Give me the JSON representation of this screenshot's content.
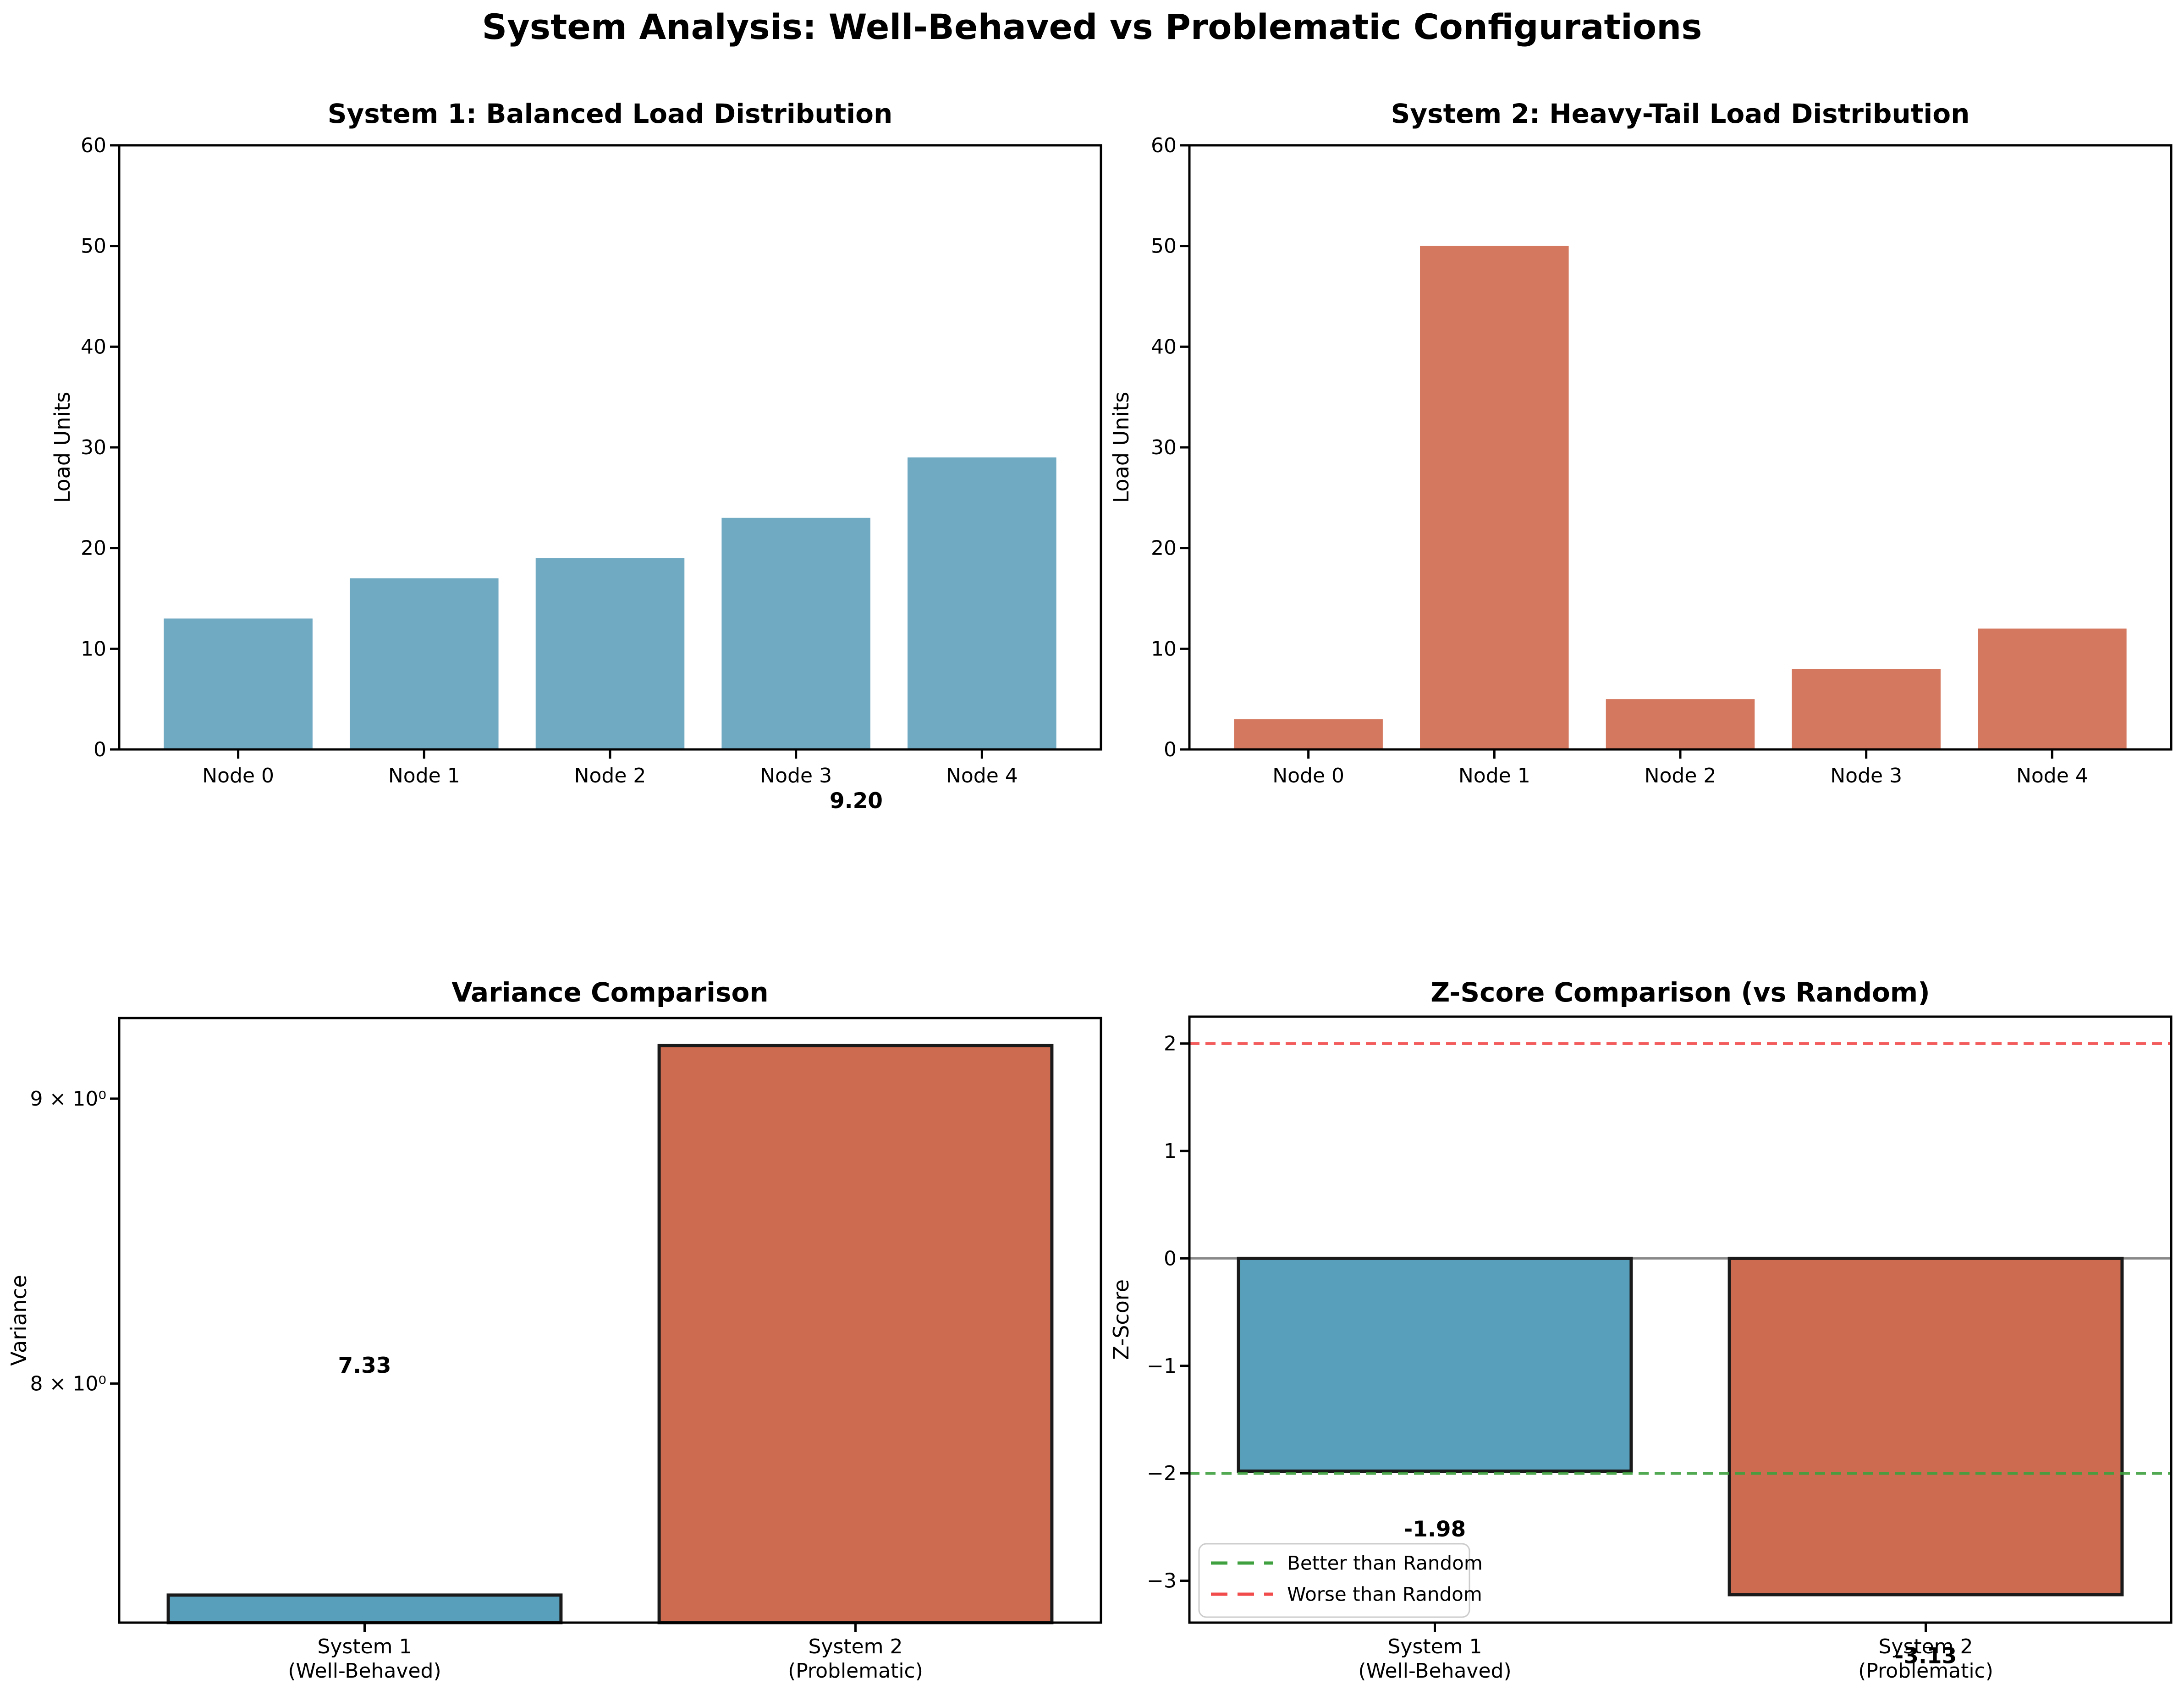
{
  "figure": {
    "suptitle": "System Analysis: Well-Behaved vs Problematic Configurations",
    "stray_annotation": "9.20",
    "background": "#ffffff",
    "accent_blue": "#579FBA",
    "accent_orange": "#CD6B50"
  },
  "chart_data": [
    {
      "id": "system1-load",
      "type": "bar",
      "title": "System 1: Balanced Load Distribution",
      "ylabel": "Load Units",
      "categories": [
        "Node 0",
        "Node 1",
        "Node 2",
        "Node 3",
        "Node 4"
      ],
      "values": [
        13,
        17,
        19,
        23,
        29
      ],
      "bar_colors": [
        "#6FA9C2",
        "#6FA9C2",
        "#6FA9C2",
        "#6FA9C2",
        "#6FA9C2"
      ],
      "bar_edge": null,
      "yscale": "linear",
      "ylim": [
        0,
        60
      ],
      "yticks": [
        {
          "value": 0,
          "label": "0"
        },
        {
          "value": 10,
          "label": "10"
        },
        {
          "value": 20,
          "label": "20"
        },
        {
          "value": 30,
          "label": "30"
        },
        {
          "value": 40,
          "label": "40"
        },
        {
          "value": 50,
          "label": "50"
        },
        {
          "value": 60,
          "label": "60"
        }
      ],
      "grid": false,
      "legend": null,
      "annotations": [],
      "hlines": []
    },
    {
      "id": "system2-load",
      "type": "bar",
      "title": "System 2: Heavy-Tail Load Distribution",
      "ylabel": "Load Units",
      "categories": [
        "Node 0",
        "Node 1",
        "Node 2",
        "Node 3",
        "Node 4"
      ],
      "values": [
        3,
        50,
        5,
        8,
        12
      ],
      "bar_colors": [
        "#D4785F",
        "#D4785F",
        "#D4785F",
        "#D4785F",
        "#D4785F"
      ],
      "bar_edge": null,
      "yscale": "linear",
      "ylim": [
        0,
        60
      ],
      "yticks": [
        {
          "value": 0,
          "label": "0"
        },
        {
          "value": 10,
          "label": "10"
        },
        {
          "value": 20,
          "label": "20"
        },
        {
          "value": 30,
          "label": "30"
        },
        {
          "value": 40,
          "label": "40"
        },
        {
          "value": 50,
          "label": "50"
        },
        {
          "value": 60,
          "label": "60"
        }
      ],
      "grid": false,
      "legend": null,
      "annotations": [],
      "hlines": []
    },
    {
      "id": "variance",
      "type": "bar",
      "title": "Variance Comparison",
      "ylabel": "Variance",
      "categories": [
        [
          "System 1",
          "(Well-Behaved)"
        ],
        [
          "System 2",
          "(Problematic)"
        ]
      ],
      "values": [
        7.33,
        9.2
      ],
      "bar_colors": [
        "#579FBA",
        "#CD6B50"
      ],
      "bar_edge": "#1a1a1a",
      "yscale": "log",
      "ylim": [
        7.247,
        9.305
      ],
      "yticks": [
        {
          "value": 9,
          "label": "9 × 10⁰"
        },
        {
          "value": 8,
          "label": "8 × 10⁰"
        }
      ],
      "grid": false,
      "legend": null,
      "annotations": [
        {
          "text": "7.33",
          "cat_index": 0,
          "y_value": 8.06
        }
      ],
      "hlines": []
    },
    {
      "id": "zscore",
      "type": "bar",
      "title": "Z-Score Comparison (vs Random)",
      "ylabel": "Z-Score",
      "categories": [
        [
          "System 1",
          "(Well-Behaved)"
        ],
        [
          "System 2",
          "(Problematic)"
        ]
      ],
      "values": [
        -1.98,
        -3.13
      ],
      "bar_colors": [
        "#579FBA",
        "#CD6B50"
      ],
      "bar_edge": "#1a1a1a",
      "yscale": "linear",
      "baseline": 0,
      "ylim": [
        -3.39,
        2.25
      ],
      "yticks": [
        {
          "value": 2,
          "label": "2"
        },
        {
          "value": 1,
          "label": "1"
        },
        {
          "value": 0,
          "label": "0"
        },
        {
          "value": -1,
          "label": "−1"
        },
        {
          "value": -2,
          "label": "−2"
        },
        {
          "value": -3,
          "label": "−3"
        }
      ],
      "grid": false,
      "hlines": [
        {
          "y": 0,
          "color": "#888888",
          "style": "solid",
          "name": "zero-line"
        },
        {
          "y": 2,
          "color": "#F24B4B",
          "style": "dashed",
          "name": "worse-than-random-line"
        },
        {
          "y": -2,
          "color": "#3FA03F",
          "style": "dashed",
          "name": "better-than-random-line"
        }
      ],
      "annotations": [
        {
          "text": "-1.98",
          "cat_index": 0,
          "y_value": -2.52
        },
        {
          "text": "-3.13",
          "cat_index": 1,
          "y_value": -3.7
        }
      ],
      "legend": {
        "entries": [
          {
            "label": "Better than Random",
            "color": "#3FA03F",
            "style": "dashed"
          },
          {
            "label": "Worse than Random",
            "color": "#F24B4B",
            "style": "dashed"
          }
        ]
      }
    }
  ]
}
